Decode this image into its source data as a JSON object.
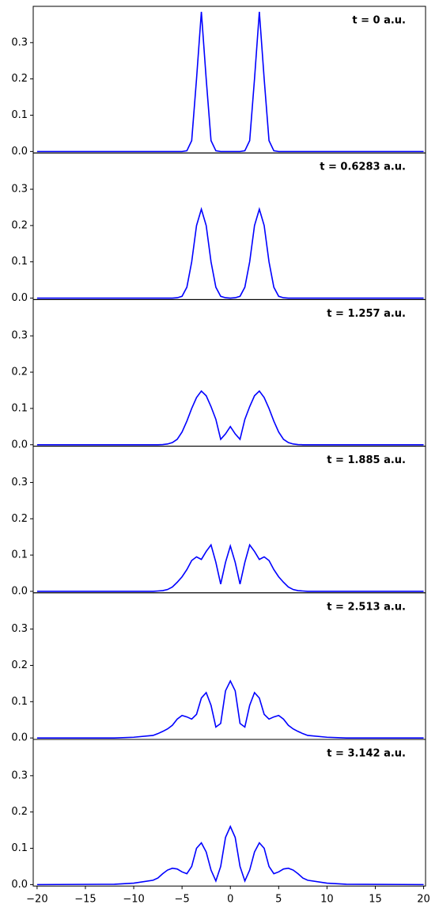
{
  "chart_data": [
    {
      "type": "line",
      "annotation": "t = 0 a.u.",
      "color": "#0000ff",
      "x": [
        -20,
        -12,
        -10,
        -8,
        -7.5,
        -7,
        -6.5,
        -6,
        -5.5,
        -5,
        -4.5,
        -4,
        -3.5,
        -3,
        -2.5,
        -2,
        -1.5,
        -1,
        -0.5,
        0,
        0.5,
        1,
        1.5,
        2,
        2.5,
        3,
        3.5,
        4,
        4.5,
        5,
        5.5,
        6,
        6.5,
        7,
        7.5,
        8,
        10,
        12,
        20
      ],
      "values": [
        0,
        0,
        0,
        0,
        0,
        0,
        0,
        0,
        0,
        0,
        0.002,
        0.03,
        0.2,
        0.385,
        0.2,
        0.03,
        0.002,
        0,
        0,
        0,
        0,
        0,
        0.002,
        0.03,
        0.2,
        0.385,
        0.2,
        0.03,
        0.002,
        0,
        0,
        0,
        0,
        0,
        0,
        0,
        0,
        0,
        0
      ],
      "xlim": [
        -20.4,
        20.2
      ],
      "ylim": [
        -0.004,
        0.4
      ],
      "yticks": [
        {
          "value": 0,
          "label": "0.0"
        },
        0.1,
        0.2,
        0.3
      ]
    },
    {
      "type": "line",
      "annotation": "t = 0.6283 a.u.",
      "color": "#0000ff",
      "x": [
        -20,
        -12,
        -10,
        -8,
        -7.5,
        -7,
        -6.5,
        -6,
        -5.5,
        -5,
        -4.5,
        -4,
        -3.5,
        -3,
        -2.5,
        -2,
        -1.5,
        -1,
        -0.5,
        0,
        0.5,
        1,
        1.5,
        2,
        2.5,
        3,
        3.5,
        4,
        4.5,
        5,
        5.5,
        6,
        6.5,
        7,
        7.5,
        8,
        10,
        12,
        20
      ],
      "values": [
        0,
        0,
        0,
        0,
        0,
        0,
        0,
        0,
        0.001,
        0.005,
        0.03,
        0.1,
        0.2,
        0.245,
        0.2,
        0.1,
        0.03,
        0.005,
        0.001,
        0,
        0.001,
        0.005,
        0.03,
        0.1,
        0.2,
        0.245,
        0.2,
        0.1,
        0.03,
        0.005,
        0.001,
        0,
        0,
        0,
        0,
        0,
        0,
        0,
        0
      ],
      "xlim": [
        -20.4,
        20.2
      ],
      "ylim": [
        -0.004,
        0.4
      ],
      "yticks": [
        {
          "value": 0,
          "label": "0.0"
        },
        0.1,
        0.2,
        0.3
      ]
    },
    {
      "type": "line",
      "annotation": "t = 1.257 a.u.",
      "color": "#0000ff",
      "x": [
        -20,
        -12,
        -10,
        -8,
        -7.5,
        -7,
        -6.5,
        -6,
        -5.5,
        -5,
        -4.5,
        -4,
        -3.5,
        -3,
        -2.5,
        -2,
        -1.5,
        -1,
        -0.5,
        0,
        0.5,
        1,
        1.5,
        2,
        2.5,
        3,
        3.5,
        4,
        4.5,
        5,
        5.5,
        6,
        6.5,
        7,
        7.5,
        8,
        10,
        12,
        20
      ],
      "values": [
        0,
        0,
        0,
        0,
        0,
        0.0005,
        0.002,
        0.006,
        0.015,
        0.035,
        0.065,
        0.1,
        0.13,
        0.148,
        0.135,
        0.105,
        0.07,
        0.015,
        0.03,
        0.05,
        0.03,
        0.015,
        0.07,
        0.105,
        0.135,
        0.148,
        0.13,
        0.1,
        0.065,
        0.035,
        0.015,
        0.006,
        0.002,
        0.0005,
        0,
        0,
        0,
        0,
        0
      ],
      "xlim": [
        -20.4,
        20.2
      ],
      "ylim": [
        -0.004,
        0.4
      ],
      "yticks": [
        {
          "value": 0,
          "label": "0.0"
        },
        0.1,
        0.2,
        0.3
      ]
    },
    {
      "type": "line",
      "annotation": "t = 1.885 a.u.",
      "color": "#0000ff",
      "x": [
        -20,
        -12,
        -10,
        -8,
        -7.5,
        -7,
        -6.5,
        -6,
        -5.5,
        -5,
        -4.5,
        -4,
        -3.5,
        -3,
        -2.5,
        -2,
        -1.5,
        -1,
        -0.5,
        0,
        0.5,
        1,
        1.5,
        2,
        2.5,
        3,
        3.5,
        4,
        4.5,
        5,
        5.5,
        6,
        6.5,
        7,
        7.5,
        8,
        10,
        12,
        20
      ],
      "values": [
        0,
        0,
        0,
        0,
        0.001,
        0.002,
        0.005,
        0.012,
        0.025,
        0.04,
        0.06,
        0.085,
        0.095,
        0.088,
        0.11,
        0.128,
        0.08,
        0.02,
        0.08,
        0.125,
        0.08,
        0.02,
        0.08,
        0.128,
        0.11,
        0.088,
        0.095,
        0.085,
        0.06,
        0.04,
        0.025,
        0.012,
        0.005,
        0.002,
        0.001,
        0,
        0,
        0,
        0
      ],
      "xlim": [
        -20.4,
        20.2
      ],
      "ylim": [
        -0.004,
        0.4
      ],
      "yticks": [
        {
          "value": 0,
          "label": "0.0"
        },
        0.1,
        0.2,
        0.3
      ]
    },
    {
      "type": "line",
      "annotation": "t = 2.513 a.u.",
      "color": "#0000ff",
      "x": [
        -20,
        -12,
        -10,
        -8,
        -7.5,
        -7,
        -6.5,
        -6,
        -5.5,
        -5,
        -4.5,
        -4,
        -3.5,
        -3,
        -2.5,
        -2,
        -1.5,
        -1,
        -0.5,
        0,
        0.5,
        1,
        1.5,
        2,
        2.5,
        3,
        3.5,
        4,
        4.5,
        5,
        5.5,
        6,
        6.5,
        7,
        7.5,
        8,
        10,
        12,
        20
      ],
      "values": [
        0,
        0,
        0.002,
        0.007,
        0.012,
        0.018,
        0.025,
        0.035,
        0.052,
        0.062,
        0.058,
        0.052,
        0.065,
        0.11,
        0.125,
        0.09,
        0.03,
        0.04,
        0.13,
        0.157,
        0.13,
        0.04,
        0.03,
        0.09,
        0.125,
        0.11,
        0.065,
        0.052,
        0.058,
        0.062,
        0.052,
        0.035,
        0.025,
        0.018,
        0.012,
        0.007,
        0.002,
        0,
        0
      ],
      "xlim": [
        -20.4,
        20.2
      ],
      "ylim": [
        -0.004,
        0.4
      ],
      "yticks": [
        {
          "value": 0,
          "label": "0.0"
        },
        0.1,
        0.2,
        0.3
      ]
    },
    {
      "type": "line",
      "annotation": "t = 3.142 a.u.",
      "color": "#0000ff",
      "x": [
        -20,
        -12,
        -10,
        -8,
        -7.5,
        -7,
        -6.5,
        -6,
        -5.5,
        -5,
        -4.5,
        -4,
        -3.5,
        -3,
        -2.5,
        -2,
        -1.5,
        -1,
        -0.5,
        0,
        0.5,
        1,
        1.5,
        2,
        2.5,
        3,
        3.5,
        4,
        4.5,
        5,
        5.5,
        6,
        6.5,
        7,
        7.5,
        8,
        10,
        12,
        20
      ],
      "values": [
        0,
        0.001,
        0.004,
        0.012,
        0.018,
        0.03,
        0.04,
        0.045,
        0.043,
        0.035,
        0.03,
        0.05,
        0.1,
        0.115,
        0.09,
        0.04,
        0.01,
        0.05,
        0.13,
        0.16,
        0.13,
        0.05,
        0.01,
        0.04,
        0.09,
        0.115,
        0.1,
        0.05,
        0.03,
        0.035,
        0.043,
        0.045,
        0.04,
        0.03,
        0.018,
        0.012,
        0.004,
        0.001,
        0
      ],
      "xlim": [
        -20.4,
        20.2
      ],
      "ylim": [
        -0.004,
        0.4
      ],
      "yticks": [
        {
          "value": 0,
          "label": "0.0"
        },
        0.1,
        0.2,
        0.3
      ],
      "xticks": [
        {
          "value": -20,
          "label": "−20"
        },
        {
          "value": -15,
          "label": "−15"
        },
        {
          "value": -10,
          "label": "−10"
        },
        {
          "value": -5,
          "label": "−5"
        },
        0,
        5,
        10,
        15,
        20
      ]
    }
  ]
}
